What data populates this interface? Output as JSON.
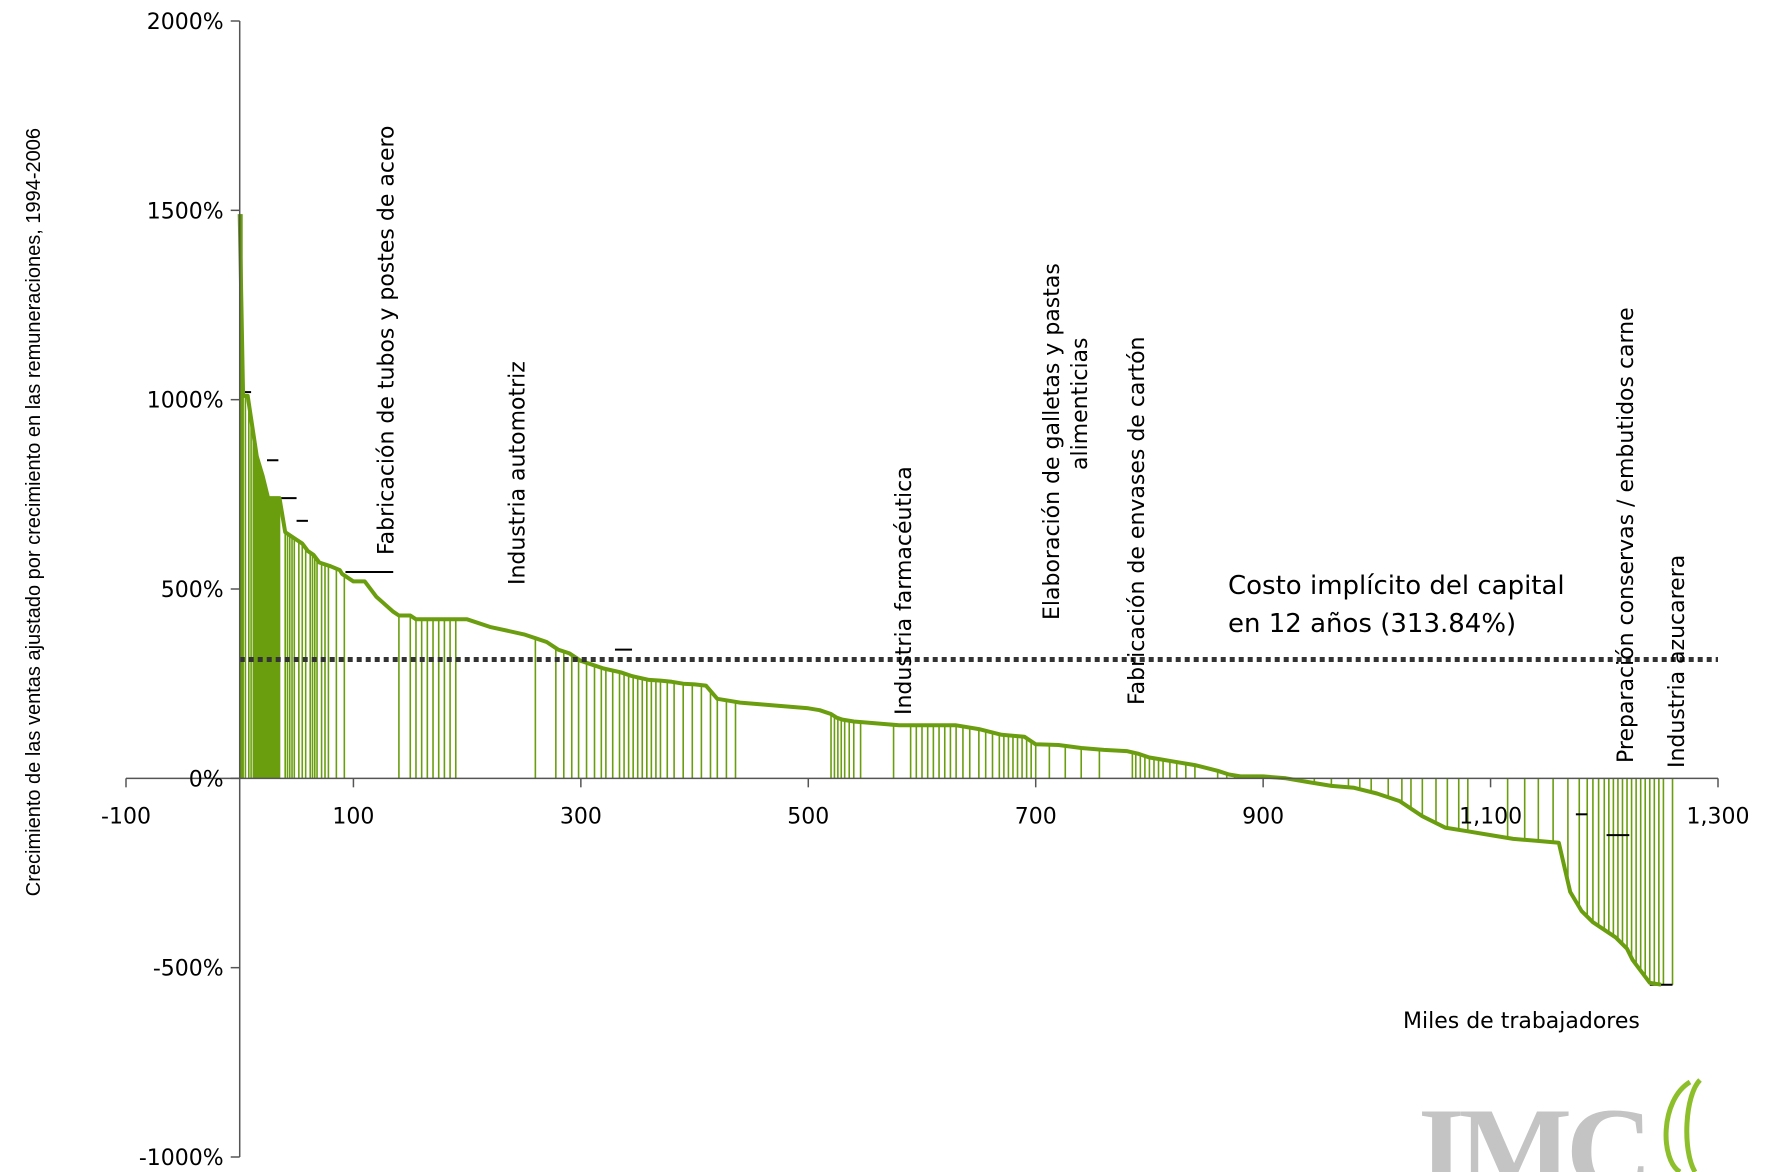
{
  "chart_data": {
    "type": "line",
    "ylabel": "Crecimiento de las ventas ajustado por crecimiento en las remuneraciones, 1994-2006",
    "xlabel": "Miles de trabajadores",
    "xlim": [
      -100,
      1300
    ],
    "ylim": [
      -1000,
      2000
    ],
    "x_ticks": [
      "-100",
      "100",
      "300",
      "500",
      "700",
      "900",
      "1,100",
      "1,300"
    ],
    "x_tick_values": [
      -100,
      100,
      300,
      500,
      700,
      900,
      1100,
      1300
    ],
    "y_ticks": [
      "2000%",
      "1500%",
      "1000%",
      "500%",
      "0%",
      "-500%",
      "-1000%"
    ],
    "y_tick_values": [
      2000,
      1500,
      1000,
      500,
      0,
      -500,
      -1000
    ],
    "series_color": "#6a9e0f",
    "threshold": {
      "value": 313.84,
      "label_line1": "Costo implícito del capital",
      "label_line2": "en 12 años (313.84%)",
      "color": "#333333"
    },
    "series": [
      {
        "x": [
          0,
          3,
          7,
          15,
          18,
          20,
          25,
          35,
          40,
          50,
          55,
          60,
          65,
          70,
          80,
          88,
          90,
          100,
          110,
          120,
          135,
          140,
          150,
          155,
          160,
          165,
          170,
          180,
          190,
          200,
          220,
          250,
          260,
          270,
          280,
          290,
          300,
          310,
          320,
          335,
          345,
          360,
          370,
          380,
          390,
          400,
          410,
          420,
          430,
          440,
          460,
          480,
          500,
          510,
          520,
          525,
          530,
          540,
          560,
          580,
          600,
          620,
          630,
          650,
          670,
          690,
          700,
          720,
          740,
          760,
          780,
          790,
          800,
          810,
          820,
          840,
          860,
          870,
          880,
          900,
          920,
          940,
          960,
          980,
          1000,
          1020,
          1040,
          1060,
          1080,
          1100,
          1120,
          1140,
          1160,
          1170,
          1180,
          1190,
          1200,
          1210,
          1220,
          1225,
          1230,
          1240,
          1250
        ],
        "values": [
          1490,
          1010,
          1010,
          850,
          820,
          800,
          740,
          740,
          650,
          630,
          620,
          600,
          590,
          570,
          560,
          550,
          540,
          520,
          520,
          480,
          440,
          430,
          430,
          420,
          420,
          420,
          420,
          420,
          420,
          420,
          400,
          380,
          370,
          360,
          340,
          330,
          310,
          300,
          290,
          280,
          270,
          260,
          258,
          255,
          250,
          248,
          245,
          210,
          205,
          200,
          195,
          190,
          185,
          180,
          170,
          160,
          155,
          150,
          145,
          140,
          140,
          140,
          140,
          130,
          115,
          110,
          90,
          88,
          80,
          75,
          72,
          65,
          55,
          50,
          45,
          35,
          20,
          10,
          5,
          5,
          0,
          -10,
          -20,
          -25,
          -40,
          -60,
          -100,
          -130,
          -140,
          -150,
          -160,
          -165,
          -170,
          -300,
          -350,
          -380,
          -400,
          -420,
          -450,
          -480,
          -500,
          -540,
          -545
        ]
      }
    ],
    "drops": [
      1,
      2,
      3,
      5,
      8,
      10,
      12,
      13,
      14,
      15,
      16,
      17,
      18,
      19,
      20,
      21,
      22,
      23,
      24,
      25,
      26,
      27,
      28,
      29,
      30,
      31,
      32,
      33,
      34,
      35,
      40,
      42,
      44,
      46,
      48,
      52,
      55,
      58,
      62,
      64,
      66,
      68,
      72,
      75,
      78,
      85,
      92,
      140,
      150,
      155,
      160,
      165,
      170,
      175,
      180,
      185,
      190,
      260,
      278,
      285,
      292,
      298,
      305,
      312,
      318,
      322,
      328,
      334,
      338,
      342,
      346,
      350,
      354,
      358,
      362,
      366,
      370,
      376,
      382,
      390,
      398,
      406,
      414,
      420,
      428,
      436,
      520,
      523,
      526,
      529,
      532,
      536,
      540,
      546,
      575,
      590,
      595,
      600,
      605,
      610,
      615,
      620,
      625,
      630,
      636,
      642,
      650,
      656,
      662,
      668,
      672,
      676,
      680,
      684,
      688,
      692,
      696,
      700,
      712,
      726,
      740,
      756,
      785,
      788,
      792,
      796,
      800,
      804,
      808,
      812,
      818,
      824,
      832,
      840,
      860,
      868,
      875,
      882,
      890,
      910,
      928,
      945,
      960,
      975,
      985,
      995,
      1010,
      1022,
      1030,
      1040,
      1052,
      1062,
      1072,
      1080,
      1115,
      1130,
      1142,
      1155,
      1168,
      1178,
      1185,
      1190,
      1195,
      1200,
      1204,
      1208,
      1212,
      1216,
      1220,
      1224,
      1228,
      1232,
      1236,
      1240,
      1244,
      1248,
      1252,
      1260
    ],
    "steps": [
      {
        "x1": 4,
        "x2": 10,
        "y": 1020
      },
      {
        "x1": 24,
        "x2": 34,
        "y": 840
      },
      {
        "x1": 34,
        "x2": 50,
        "y": 740
      },
      {
        "x1": 50,
        "x2": 60,
        "y": 680
      },
      {
        "x1": 93,
        "x2": 135,
        "y": 545
      },
      {
        "x1": 330,
        "x2": 345,
        "y": 340
      },
      {
        "x1": 1175,
        "x2": 1185,
        "y": -95
      },
      {
        "x1": 1202,
        "x2": 1222,
        "y": -150
      },
      {
        "x1": 1240,
        "x2": 1260,
        "y": -545
      }
    ],
    "annotations": [
      {
        "label": "Fabricación de tubos y postes de acero",
        "x": 130
      },
      {
        "label": "Industria automotriz",
        "x": 245
      },
      {
        "label": "Industria farmacéutica",
        "x": 585
      },
      {
        "label": "Elaboración de galletas y pastas",
        "x": 715
      },
      {
        "label": "alimenticias",
        "x": 740
      },
      {
        "label": "Fabricación de envases de cartón",
        "x": 790
      },
      {
        "label": "Preparación conservas / embutidos carne",
        "x": 1220
      },
      {
        "label": "Industria azucarera",
        "x": 1265
      }
    ]
  },
  "logo": {
    "text": "IMC",
    "color": "#c4c4c4",
    "accent_color": "#8cbf2a"
  }
}
